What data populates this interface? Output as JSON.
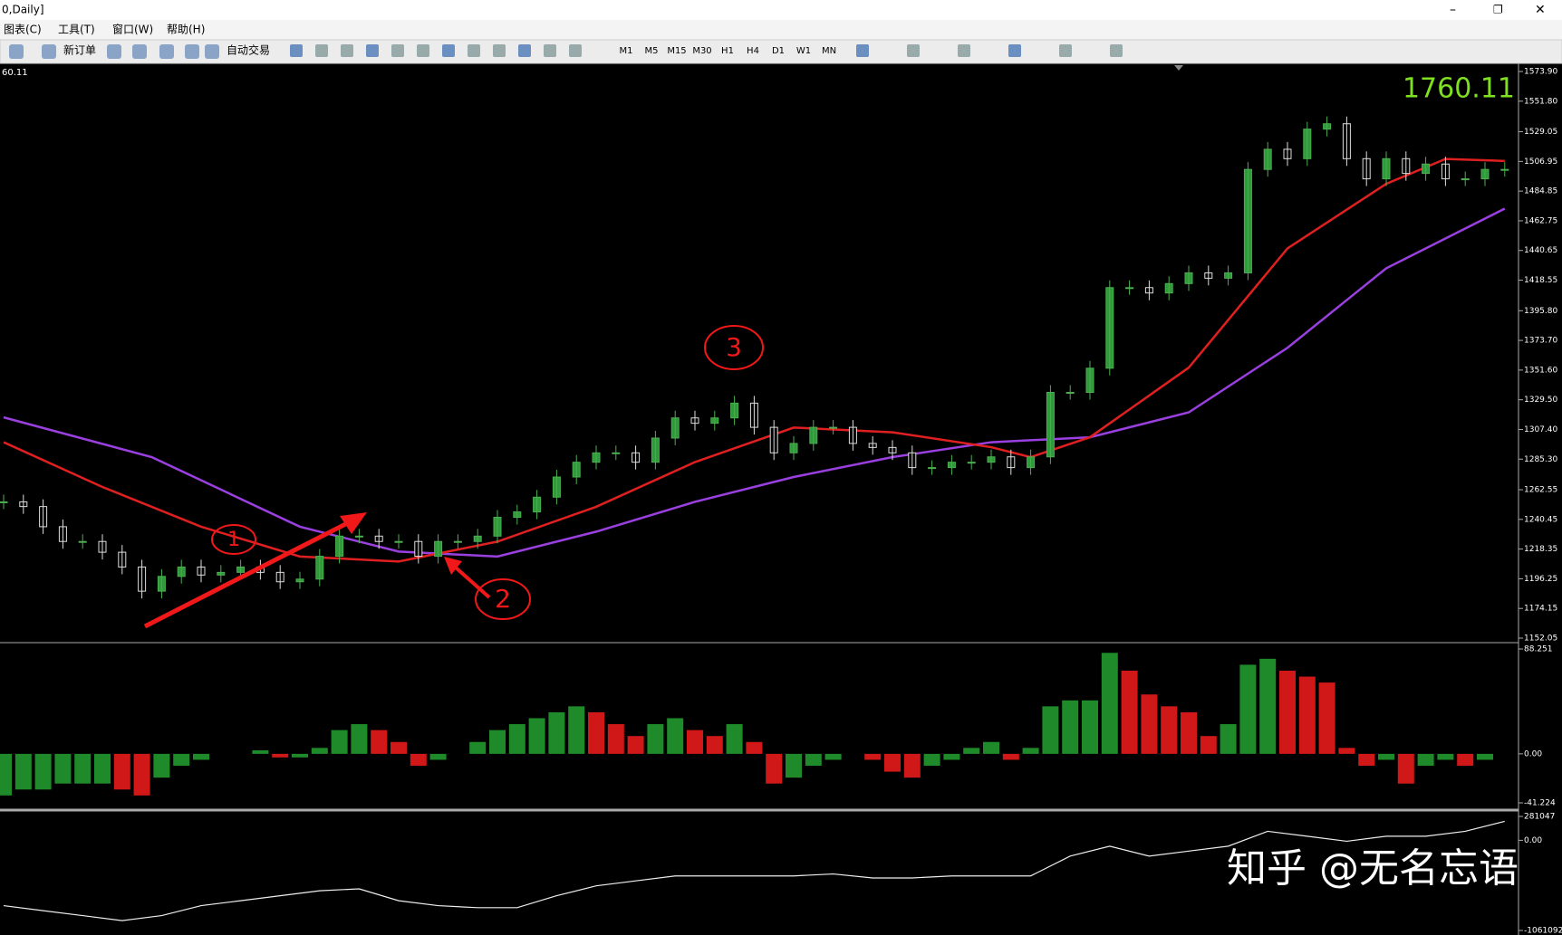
{
  "window": {
    "title": "0,Daily]"
  },
  "menu": [
    "图表(C)",
    "工具(T)",
    "窗口(W)",
    "帮助(H)"
  ],
  "toolbar": {
    "buttons": [
      "新订单",
      "自动交易"
    ],
    "timeframes": [
      "M1",
      "M5",
      "M15",
      "M30",
      "H1",
      "H4",
      "D1",
      "W1",
      "MN"
    ]
  },
  "chart": {
    "type": "candlestick",
    "corner_price": "60.11",
    "last_price": "1760.11",
    "watermark": "知乎 @无名忘语",
    "annotations": [
      "1",
      "2",
      "3"
    ],
    "ylim": [
      1152.05,
      1573.9
    ],
    "yticks": [
      {
        "value": 1573.9,
        "label": "1573.90"
      },
      {
        "value": 1551.8,
        "label": "1551.80"
      },
      1529.05,
      1506.95,
      1484.85,
      1462.75,
      1440.65,
      1418.55,
      {
        "value": 1395.8,
        "label": "1395.80"
      },
      {
        "value": 1373.7,
        "label": "1373.70"
      },
      {
        "value": 1351.6,
        "label": "1351.60"
      },
      {
        "value": 1329.5,
        "label": "1329.50"
      },
      {
        "value": 1307.4,
        "label": "1307.40"
      },
      {
        "value": 1285.3,
        "label": "1285.30"
      },
      1262.55,
      1240.45,
      1218.35,
      1196.25,
      1174.15,
      1152.05
    ],
    "close": [
      1253.5,
      1250,
      1235,
      1224,
      1224,
      1216,
      1205,
      1187,
      1198,
      1205,
      1199,
      1201,
      1205,
      1201,
      1194,
      1196,
      1213,
      1228,
      1228,
      1224,
      1224,
      1213,
      1224,
      1224,
      1228,
      1242,
      1246,
      1257,
      1272,
      1283,
      1290,
      1290,
      1283,
      1301,
      1316,
      1312,
      1316,
      1327,
      1309,
      1290,
      1297,
      1309,
      1309,
      1297,
      1294,
      1290,
      1279,
      1279,
      1283,
      1283,
      1287,
      1279,
      1287,
      1335,
      1335,
      1353,
      1413,
      1413,
      1409,
      1416,
      1424,
      1420,
      1424,
      1501,
      1516,
      1509,
      1531,
      1535,
      1509,
      1494,
      1509,
      1498,
      1505,
      1494,
      1494,
      1501,
      1501
    ],
    "ma": [
      {
        "color": "#e02020",
        "x": [
          0,
          5,
          10,
          15,
          20,
          25,
          30,
          35,
          40,
          45,
          50,
          52,
          55,
          60,
          65,
          70,
          73,
          76
        ],
        "values": [
          1297.9,
          1264.6,
          1235,
          1212.8,
          1209.1,
          1223.9,
          1249.8,
          1283.1,
          1308.8,
          1305.3,
          1294.2,
          1286.8,
          1301.6,
          1353.4,
          1442.2,
          1490.3,
          1508.8,
          1507.3
        ]
      },
      {
        "color": "#9b40e0",
        "x": [
          0,
          7.5,
          15,
          20,
          25,
          30,
          35,
          40,
          45,
          50,
          55,
          60,
          65,
          70,
          76
        ],
        "values": [
          1316.4,
          1286.8,
          1235,
          1216.5,
          1212.8,
          1231.3,
          1253.5,
          1272,
          1286.8,
          1297.9,
          1301.6,
          1320.1,
          1368.2,
          1427.4,
          1471.8
        ]
      }
    ],
    "macd": {
      "ylim": [
        -41.224,
        88.251
      ],
      "yticks": [
        88.251,
        {
          "value": 0,
          "label": "0.00"
        },
        -41.224
      ],
      "values": [
        -35,
        -30,
        -30,
        -25,
        -25,
        -25,
        -30,
        -35,
        -20,
        -10,
        -5,
        0,
        0,
        3,
        -3,
        -3,
        5,
        20,
        25,
        20,
        10,
        -10,
        -5,
        0,
        10,
        20,
        25,
        30,
        35,
        40,
        35,
        25,
        15,
        25,
        30,
        20,
        15,
        25,
        10,
        -25,
        -20,
        -10,
        -5,
        0,
        -5,
        -15,
        -20,
        -10,
        -5,
        5,
        10,
        -5,
        5,
        40,
        45,
        45,
        85,
        70,
        50,
        40,
        35,
        15,
        25,
        75,
        80,
        70,
        65,
        60,
        5,
        -10,
        -5,
        -25,
        -10,
        -5,
        -10,
        -5,
        0
      ]
    },
    "volume_line": {
      "ylim": [
        -1061092,
        281047
      ],
      "yticks": [
        281047,
        {
          "value": 0,
          "label": "0.00"
        },
        -1061092
      ],
      "values": [
        -769000,
        -828000,
        -886000,
        -945000,
        -886000,
        -769000,
        -711000,
        -652000,
        -594000,
        -571000,
        -711000,
        -769000,
        -793000,
        -793000,
        -652000,
        -536000,
        -477000,
        -419000,
        -419000,
        -419000,
        -419000,
        -396000,
        -443000,
        -443000,
        -419000,
        -419000,
        -419000,
        -186000,
        -69000,
        -186000,
        -127000,
        -69000,
        106000,
        48000,
        -11000,
        48000,
        48000,
        106000,
        223000
      ]
    }
  }
}
